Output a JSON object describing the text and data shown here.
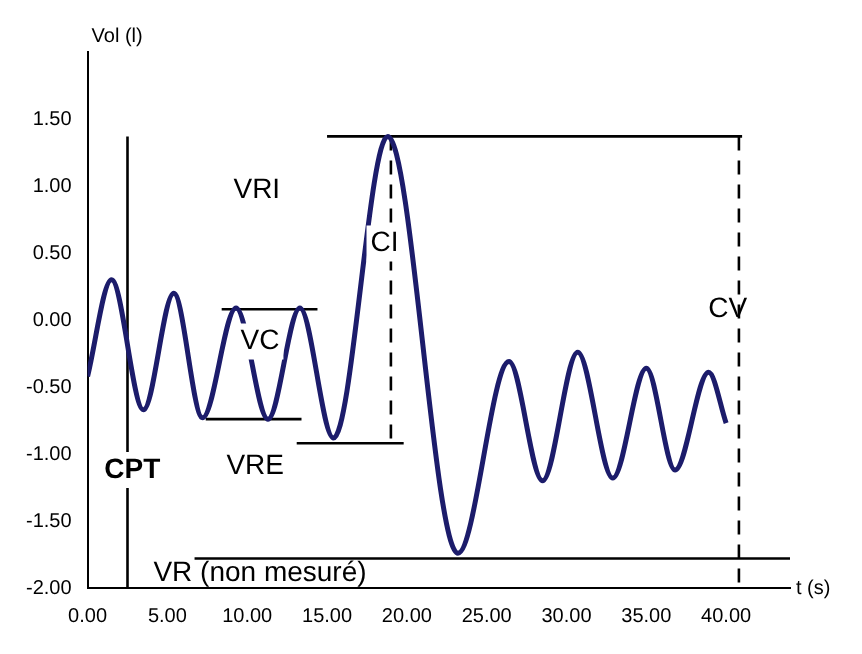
{
  "chart_data": {
    "type": "line",
    "xlabel": "t (s)",
    "ylabel": "Vol (l)",
    "x": [
      0,
      1.5,
      3.5,
      5.4,
      7.2,
      9.3,
      11.3,
      13.3,
      15.4,
      18.8,
      23.2,
      26.4,
      28.5,
      30.7,
      32.9,
      35.0,
      36.8,
      38.9,
      40.0
    ],
    "xlim": [
      0,
      44
    ],
    "ylim": [
      -2,
      2
    ],
    "xticks": [
      {
        "value": 0,
        "label": "0.00"
      },
      {
        "value": 5,
        "label": "5.00"
      },
      {
        "value": 10,
        "label": "10.00"
      },
      {
        "value": 15,
        "label": "15.00"
      },
      {
        "value": 20,
        "label": "20.00"
      },
      {
        "value": 25,
        "label": "25.00"
      },
      {
        "value": 30,
        "label": "30.00"
      },
      {
        "value": 35,
        "label": "35.00"
      },
      {
        "value": 40,
        "label": "40.00"
      }
    ],
    "yticks": [
      {
        "value": -2,
        "label": "-2.00"
      },
      {
        "value": -1.5,
        "label": "-1.50"
      },
      {
        "value": -1,
        "label": "-1.00"
      },
      {
        "value": -0.5,
        "label": "-0.50"
      },
      {
        "value": 0,
        "label": "0.00"
      },
      {
        "value": 0.5,
        "label": "0.50"
      },
      {
        "value": 1,
        "label": "1.00"
      },
      {
        "value": 1.5,
        "label": "1.50"
      }
    ],
    "grid": false,
    "legend": false,
    "marker": "none",
    "series": [
      {
        "color": "#1c1c6b",
        "values": [
          -0.42,
          0.3,
          -0.67,
          0.2,
          -0.73,
          0.09,
          -0.74,
          0.09,
          -0.88,
          1.37,
          -1.74,
          -0.31,
          -1.2,
          -0.24,
          -1.18,
          -0.36,
          -1.12,
          -0.39,
          -0.77
        ]
      },
      {
        "type": "line",
        "color": "#000000",
        "x": [
          15,
          41
        ],
        "values": [
          1.37,
          1.37
        ]
      },
      {
        "type": "line",
        "color": "#000000",
        "x": [
          8.4,
          14.4
        ],
        "values": [
          0.08,
          0.08
        ]
      },
      {
        "type": "line",
        "color": "#000000",
        "x": [
          7.4,
          13.4
        ],
        "values": [
          -0.74,
          -0.74
        ]
      },
      {
        "type": "line",
        "color": "#000000",
        "x": [
          13.1,
          19.8
        ],
        "values": [
          -0.92,
          -0.92
        ]
      },
      {
        "type": "line",
        "color": "#000000",
        "line_style": "dashed",
        "x": [
          19,
          19
        ],
        "values": [
          1.37,
          -0.92
        ]
      },
      {
        "type": "line",
        "color": "#000000",
        "line_style": "dashed",
        "x": [
          40.8,
          40.8
        ],
        "values": [
          1.37,
          -2.0
        ]
      },
      {
        "type": "line",
        "color": "#000000",
        "x": [
          2.5,
          2.5
        ],
        "values": [
          -2.0,
          1.37
        ]
      },
      {
        "type": "line",
        "color": "#000000",
        "x": [
          6.7,
          44
        ],
        "values": [
          -1.78,
          -1.78
        ]
      }
    ],
    "annotations": [
      "VRI",
      "CI",
      "VC",
      "VRE",
      "CPT",
      "CV",
      "VR (non mesuré)"
    ]
  }
}
